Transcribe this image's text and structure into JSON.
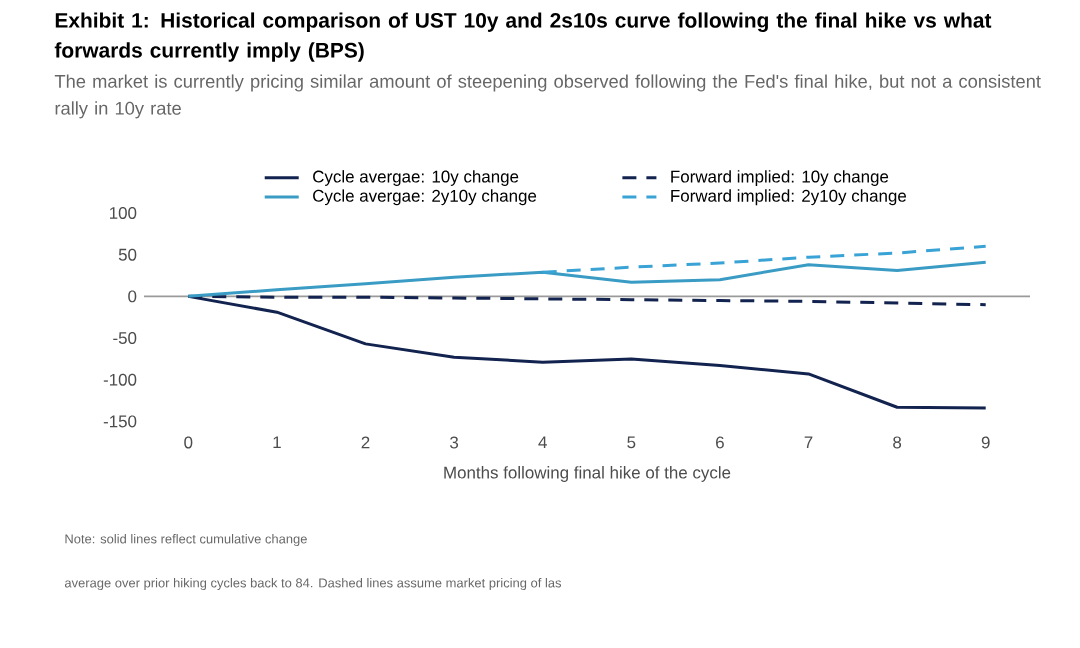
{
  "chart_data": {
    "type": "line",
    "title": "Exhibit 1: Historical comparison of UST 10y and 2s10s curve following the final hike vs what forwards currently imply (BPS)",
    "subtitle": "The market is currently pricing similar amount of steepening observed following the Fed's final hike, but not a consistent rally in 10y rate",
    "xlabel": "Months following final hike of the cycle",
    "annotations": [
      "Note: solid lines reflect cumulative change",
      "average over prior hiking cycles back to 84. Dashed lines assume market pricing of las"
    ],
    "x": [
      0,
      1,
      2,
      3,
      4,
      5,
      6,
      7,
      8,
      9
    ],
    "series": [
      {
        "name": "Cycle avergae: 10y change",
        "color": "#13234f",
        "line_style": "solid",
        "values": [
          0,
          -19,
          -57,
          -73,
          -79,
          -75,
          -83,
          -93,
          -133,
          -134
        ]
      },
      {
        "name": "Forward implied: 10y change",
        "color": "#13234f",
        "line_style": "dashed",
        "values": [
          0,
          -1,
          -1,
          -2,
          -3,
          -4,
          -5,
          -6,
          -8,
          -10
        ]
      },
      {
        "name": "Cycle avergae: 2y10y change",
        "color": "#3a9cc4",
        "line_style": "solid",
        "values": [
          0,
          8,
          15,
          23,
          29,
          17,
          20,
          38,
          31,
          41
        ]
      },
      {
        "name": "Forward implied: 2y10y change",
        "color": "#3aa3d6",
        "line_style": "dashed",
        "values": [
          null,
          null,
          null,
          null,
          29,
          35,
          40,
          47,
          52,
          60
        ]
      }
    ],
    "xlim": [
      -0.5,
      9.5
    ],
    "ylim": [
      -150,
      100
    ],
    "xticks": [
      0,
      1,
      2,
      3,
      4,
      5,
      6,
      7,
      8,
      9
    ],
    "yticks": [
      -150,
      -100,
      -50,
      0,
      50,
      100
    ],
    "ref_lines": [
      {
        "axis": "y",
        "value": 0,
        "color": "#9a9a9a"
      }
    ],
    "legend": "top",
    "grid": false,
    "marker": "none"
  }
}
